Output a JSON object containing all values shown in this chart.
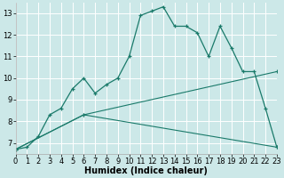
{
  "xlabel": "Humidex (Indice chaleur)",
  "bg_color": "#cce8e8",
  "grid_color": "#ffffff",
  "line_color": "#1a7a6a",
  "x_min": 0,
  "x_max": 23,
  "y_min": 6.5,
  "y_max": 13.5,
  "y_ticks": [
    7,
    8,
    9,
    10,
    11,
    12,
    13
  ],
  "series1_x": [
    0,
    1,
    2,
    3,
    4,
    5,
    6,
    7,
    8,
    9,
    10,
    11,
    12,
    13,
    14,
    15,
    16,
    17,
    18,
    19,
    20,
    21,
    22,
    23
  ],
  "series1_y": [
    6.7,
    6.8,
    7.3,
    8.3,
    8.6,
    9.5,
    10.0,
    9.3,
    9.7,
    10.0,
    11.0,
    12.9,
    13.1,
    13.3,
    12.4,
    12.4,
    12.1,
    11.0,
    12.4,
    11.4,
    10.3,
    10.3,
    8.6,
    6.8
  ],
  "series2_x": [
    0,
    6,
    23
  ],
  "series2_y": [
    6.7,
    8.3,
    10.3
  ],
  "series3_x": [
    0,
    6,
    23
  ],
  "series3_y": [
    6.7,
    8.3,
    6.8
  ],
  "tick_fontsize": 6,
  "label_fontsize": 7,
  "figwidth": 3.2,
  "figheight": 2.0,
  "dpi": 100
}
